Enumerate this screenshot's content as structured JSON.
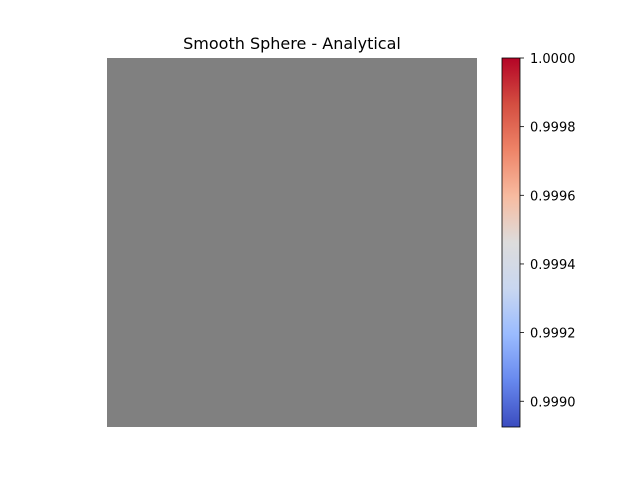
{
  "chart_data": {
    "type": "heatmap",
    "title": "Smooth Sphere - Analytical",
    "xlabel": "",
    "ylabel": "",
    "axes_visible": false,
    "fill_color": "#808080",
    "colorbar": {
      "colormap": "coolwarm",
      "range": [
        0.998925,
        1.0
      ],
      "ticks": [
        0.999,
        0.9992,
        0.9994,
        0.9996,
        0.9998,
        1.0
      ],
      "tick_labels": [
        "0.9990",
        "0.9992",
        "0.9994",
        "0.9996",
        "0.9998",
        "1.0000"
      ],
      "stops": [
        "#3b4cc0",
        "#6788ee",
        "#9abbff",
        "#c9d7f0",
        "#dddcdc",
        "#f7bba0",
        "#ee8468",
        "#d44e41",
        "#b40426"
      ]
    }
  }
}
